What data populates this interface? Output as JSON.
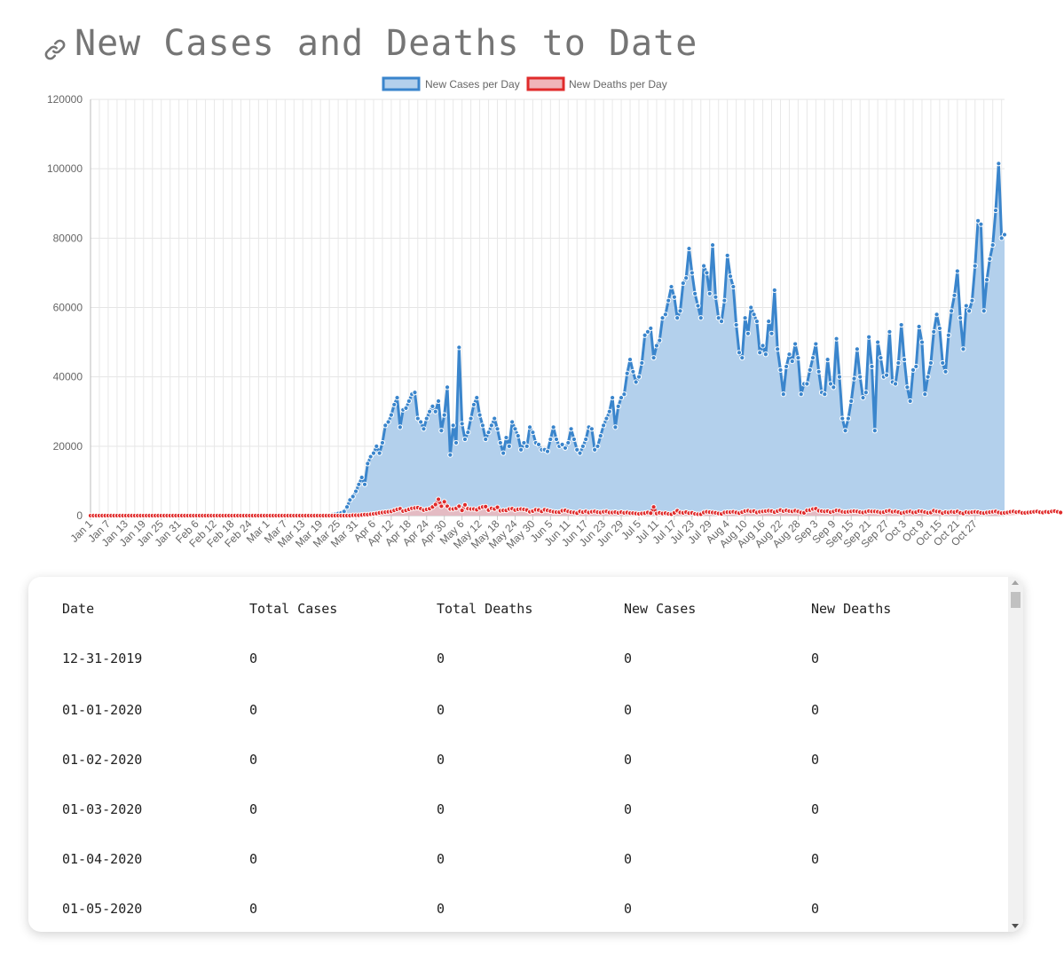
{
  "page": {
    "title": "New Cases and Deaths to Date"
  },
  "colors": {
    "cases_line": "#3a85cc",
    "cases_fill": "#b3d0ec",
    "deaths_line": "#e02b2b",
    "deaths_fill": "#f0b5b9",
    "title": "#757575"
  },
  "icons": {
    "title_link": "link-icon"
  },
  "chart_data": {
    "type": "line",
    "filled": true,
    "grid": true,
    "legend": "top-center",
    "ylim": [
      0,
      120000
    ],
    "yticks": [
      0,
      20000,
      40000,
      60000,
      80000,
      100000,
      120000
    ],
    "x_start": "2020-01-01",
    "x_tick_labels": [
      "Jan 1",
      "Jan 7",
      "Jan 13",
      "Jan 19",
      "Jan 25",
      "Jan 31",
      "Feb 6",
      "Feb 12",
      "Feb 18",
      "Feb 24",
      "Mar 1",
      "Mar 7",
      "Mar 13",
      "Mar 19",
      "Mar 25",
      "Mar 31",
      "Apr 6",
      "Apr 12",
      "Apr 18",
      "Apr 24",
      "Apr 30",
      "May 6",
      "May 12",
      "May 18",
      "May 24",
      "May 30",
      "Jun 5",
      "Jun 11",
      "Jun 17",
      "Jun 23",
      "Jun 29",
      "Jul 5",
      "Jul 11",
      "Jul 17",
      "Jul 23",
      "Jul 29",
      "Aug 4",
      "Aug 10",
      "Aug 16",
      "Aug 22",
      "Aug 28",
      "Sep 3",
      "Sep 9",
      "Sep 15",
      "Sep 21",
      "Sep 27",
      "Oct 3",
      "Oct 9",
      "Oct 15",
      "Oct 21",
      "Oct 27"
    ],
    "series": [
      {
        "name": "New Cases per Day",
        "values": [
          0,
          0,
          0,
          0,
          0,
          0,
          0,
          0,
          0,
          0,
          0,
          0,
          0,
          0,
          0,
          0,
          0,
          0,
          0,
          0,
          0,
          0,
          0,
          0,
          0,
          0,
          0,
          0,
          0,
          0,
          0,
          0,
          0,
          0,
          0,
          0,
          0,
          0,
          0,
          0,
          0,
          0,
          0,
          0,
          0,
          0,
          0,
          0,
          0,
          0,
          0,
          0,
          0,
          0,
          0,
          0,
          0,
          0,
          0,
          0,
          0,
          0,
          0,
          0,
          0,
          0,
          0,
          0,
          0,
          0,
          0,
          0,
          0,
          0,
          0,
          0,
          0,
          0,
          0,
          100,
          100,
          200,
          300,
          400,
          600,
          800,
          1200,
          2500,
          4500,
          5500,
          7000,
          9000,
          11000,
          9000,
          15000,
          17000,
          18000,
          20000,
          18000,
          21000,
          26000,
          27000,
          29000,
          32000,
          34000,
          25500,
          30500,
          31000,
          33000,
          35000,
          35500,
          28000,
          27000,
          25000,
          28000,
          30000,
          31500,
          30000,
          33000,
          24500,
          29000,
          37000,
          17500,
          26000,
          21000,
          48500,
          26500,
          22000,
          24000,
          28000,
          32000,
          34000,
          29000,
          26000,
          22000,
          24000,
          26000,
          28000,
          25000,
          21000,
          18000,
          22500,
          20000,
          27000,
          25000,
          23000,
          19000,
          21000,
          20000,
          25500,
          24000,
          21000,
          20500,
          19000,
          19000,
          18500,
          22000,
          25500,
          22000,
          20000,
          20500,
          19500,
          21000,
          25000,
          22000,
          19000,
          18000,
          20000,
          22000,
          25500,
          25000,
          19000,
          20000,
          23000,
          26000,
          28000,
          30000,
          34000,
          25500,
          31500,
          34000,
          35000,
          41000,
          45000,
          41500,
          38500,
          40000,
          44000,
          52000,
          53000,
          54000,
          45500,
          49000,
          50500,
          57000,
          58000,
          62000,
          66000,
          63000,
          57000,
          59000,
          67000,
          68500,
          77000,
          70000,
          64000,
          60500,
          57000,
          72000,
          70000,
          64000,
          78000,
          63000,
          57000,
          56000,
          62000,
          75000,
          69000,
          66000,
          55000,
          47000,
          45500,
          57000,
          52500,
          60000,
          58000,
          56000,
          47000,
          49000,
          46500,
          56000,
          52500,
          65000,
          48000,
          42000,
          35000,
          43000,
          46500,
          44500,
          49500,
          45500,
          35000,
          38000,
          38000,
          42000,
          45500,
          49500,
          41500,
          35500,
          35000,
          45000,
          38000,
          37000,
          51000,
          40000,
          28000,
          24500,
          28000,
          33000,
          39500,
          48000,
          40000,
          34000,
          35500,
          51500,
          43000,
          24500,
          50000,
          45500,
          40000,
          40500,
          53000,
          38500,
          38000,
          44000,
          55000,
          45000,
          37000,
          33000,
          42000,
          43000,
          54500,
          50000,
          35000,
          40000,
          44000,
          53000,
          58000,
          54000,
          44000,
          41500,
          52000,
          59000,
          63500,
          70500,
          57000,
          48000,
          60500,
          59000,
          62000,
          72000,
          85000,
          84000,
          59000,
          68000,
          74000,
          78000,
          88000,
          101500,
          80000,
          81000
        ]
      },
      {
        "name": "New Deaths per Day",
        "values": [
          0,
          0,
          0,
          0,
          0,
          0,
          0,
          0,
          0,
          0,
          0,
          0,
          0,
          0,
          0,
          0,
          0,
          0,
          0,
          0,
          0,
          0,
          0,
          0,
          0,
          0,
          0,
          0,
          0,
          0,
          0,
          0,
          0,
          0,
          0,
          0,
          0,
          0,
          0,
          0,
          0,
          0,
          0,
          0,
          0,
          0,
          0,
          0,
          0,
          0,
          0,
          0,
          0,
          0,
          0,
          0,
          0,
          0,
          0,
          0,
          0,
          0,
          0,
          0,
          0,
          0,
          0,
          0,
          0,
          0,
          0,
          0,
          0,
          0,
          0,
          0,
          0,
          0,
          0,
          0,
          0,
          0,
          0,
          0,
          0,
          0,
          0,
          0,
          0,
          100,
          100,
          100,
          200,
          300,
          300,
          400,
          500,
          600,
          800,
          900,
          1000,
          1100,
          1200,
          1500,
          1800,
          2000,
          1300,
          1500,
          1800,
          2100,
          2200,
          2300,
          2000,
          1600,
          1800,
          2000,
          2500,
          3200,
          4700,
          2700,
          4000,
          2700,
          1900,
          1900,
          2100,
          2700,
          1500,
          3100,
          2000,
          1900,
          1900,
          1700,
          2200,
          2500,
          2600,
          1600,
          2100,
          1900,
          2400,
          1400,
          1500,
          1500,
          1900,
          2000,
          1600,
          1800,
          1900,
          1800,
          1600,
          1100,
          1300,
          1700,
          1600,
          1200,
          1700,
          1500,
          1300,
          1100,
          1000,
          1000,
          1400,
          1500,
          1200,
          1000,
          900,
          700,
          1200,
          1000,
          1200,
          900,
          1100,
          1200,
          1000,
          900,
          1100,
          1200,
          900,
          900,
          1000,
          800,
          1000,
          800,
          900,
          700,
          700,
          600,
          500,
          600,
          700,
          900,
          700,
          2500,
          600,
          800,
          600,
          700,
          500,
          400,
          800,
          1400,
          900,
          800,
          1000,
          700,
          800,
          500,
          400,
          400,
          900,
          1100,
          1000,
          900,
          800,
          600,
          500,
          900,
          1000,
          1000,
          1100,
          900,
          700,
          1000,
          1300,
          1400,
          1200,
          1300,
          900,
          1100,
          1200,
          1300,
          1400,
          1300,
          1000,
          1300,
          1600,
          1300,
          1500,
          1300,
          1200,
          1400,
          1200,
          900,
          800,
          1500,
          1600,
          1900,
          2000,
          1400,
          1300,
          1200,
          1300,
          1000,
          1200,
          1500,
          1400,
          1100,
          1000,
          1100,
          1200,
          1300,
          1200,
          1000,
          900,
          1100,
          1300,
          1200,
          1200,
          1100,
          900,
          1000,
          1300,
          1400,
          1100,
          1200,
          1000,
          700,
          900,
          1100,
          1200,
          900,
          1000,
          1300,
          1200,
          1000,
          800,
          900,
          1400,
          1200,
          1100,
          700,
          1000,
          900,
          1100,
          1000,
          1200,
          800,
          600,
          1000,
          900,
          1000,
          1100,
          1000,
          800,
          700,
          900,
          1000,
          1100,
          1200,
          900,
          700,
          800,
          900,
          1100,
          1200,
          1000,
          1100,
          800,
          800,
          900,
          1000,
          1100,
          1200,
          1000,
          900,
          1100,
          1000,
          1200,
          1300,
          1100,
          900
        ]
      }
    ]
  },
  "table": {
    "headers": [
      "Date",
      "Total Cases",
      "Total Deaths",
      "New Cases",
      "New Deaths"
    ],
    "rows": [
      [
        "12-31-2019",
        "0",
        "0",
        "0",
        "0"
      ],
      [
        "01-01-2020",
        "0",
        "0",
        "0",
        "0"
      ],
      [
        "01-02-2020",
        "0",
        "0",
        "0",
        "0"
      ],
      [
        "01-03-2020",
        "0",
        "0",
        "0",
        "0"
      ],
      [
        "01-04-2020",
        "0",
        "0",
        "0",
        "0"
      ],
      [
        "01-05-2020",
        "0",
        "0",
        "0",
        "0"
      ]
    ]
  }
}
